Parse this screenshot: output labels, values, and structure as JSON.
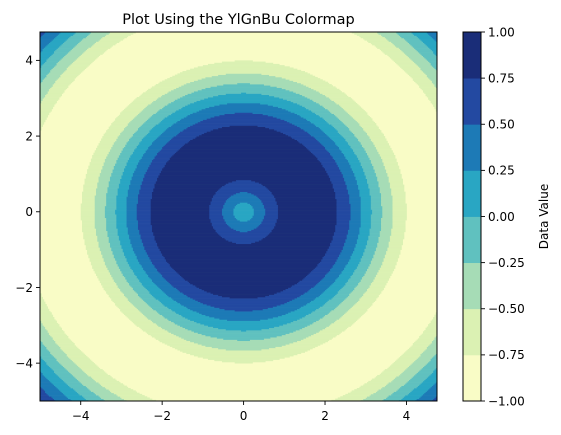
{
  "chart_data": {
    "type": "heatmap",
    "subtype": "filled-contour",
    "title": "Plot Using the YlGnBu Colormap",
    "xlabel": "",
    "ylabel": "",
    "xlim": [
      -5,
      4.75
    ],
    "ylim": [
      -5,
      4.75
    ],
    "x_ticks": [
      -4,
      -2,
      0,
      2,
      4
    ],
    "x_tick_labels": [
      "−4",
      "−2",
      "0",
      "2",
      "4"
    ],
    "y_ticks": [
      -4,
      -2,
      0,
      2,
      4
    ],
    "y_tick_labels": [
      "−4",
      "−2",
      "0",
      "2",
      "4"
    ],
    "function": "sin(sqrt(x^2 + y^2))",
    "grid_step": 0.25,
    "colormap": "YlGnBu",
    "levels": [
      -1.0,
      -0.75,
      -0.5,
      -0.25,
      0.0,
      0.25,
      0.5,
      0.75,
      1.0
    ],
    "level_colors": [
      "#f9fcc6",
      "#dbf1b3",
      "#a6dcb6",
      "#60c1bf",
      "#29a6c3",
      "#1d7ab6",
      "#2349a1",
      "#1a2d78"
    ],
    "colorbar": {
      "label": "Data Value",
      "ticks": [
        -1.0,
        -0.75,
        -0.5,
        -0.25,
        0.0,
        0.25,
        0.5,
        0.75,
        1.0
      ],
      "tick_labels": [
        "−1.00",
        "−0.75",
        "−0.50",
        "−0.25",
        "0.00",
        "0.25",
        "0.50",
        "0.75",
        "1.00"
      ],
      "position": "right"
    },
    "legend": "none",
    "grid": false
  }
}
